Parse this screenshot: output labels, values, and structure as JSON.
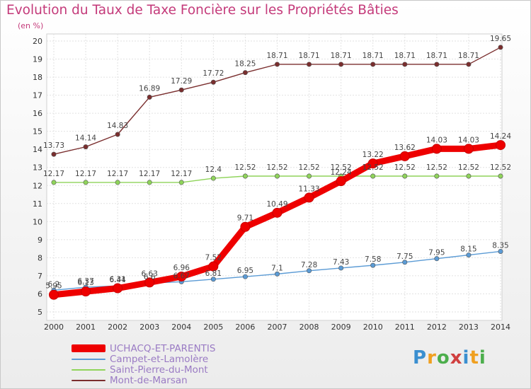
{
  "title": "Evolution du Taux de Taxe Foncière sur les Propriétés Bâties",
  "ylabel": "(en %)",
  "logo": {
    "letters": [
      "P",
      "r",
      "o",
      "x",
      "i",
      "t",
      "i"
    ],
    "colors": [
      "#3a8fd0",
      "#f0a020",
      "#4cae4c",
      "#d04040",
      "#3a8fd0",
      "#f0a020",
      "#4cae4c"
    ]
  },
  "chart_data": {
    "type": "line",
    "title": "Evolution du Taux de Taxe Foncière sur les Propriétés Bâties",
    "ylabel": "(en %)",
    "xlabel": "",
    "ylim": [
      5,
      20
    ],
    "yticks": [
      "5",
      "6",
      "7",
      "8",
      "9",
      "10",
      "11",
      "12",
      "13",
      "14",
      "15",
      "16",
      "17",
      "18",
      "19",
      "20"
    ],
    "categories": [
      "2000",
      "2001",
      "2002",
      "2003",
      "2004",
      "2005",
      "2006",
      "2007",
      "2008",
      "2009",
      "2010",
      "2011",
      "2012",
      "2013",
      "2014"
    ],
    "series": [
      {
        "name": "UCHACQ-ET-PARENTIS",
        "color": "#ee0000",
        "values": [
          5.95,
          6.13,
          6.31,
          6.63,
          6.96,
          7.52,
          9.71,
          10.49,
          11.33,
          12.24,
          13.22,
          13.62,
          14.03,
          14.03,
          14.24
        ],
        "labels": [
          "5.95",
          "6.13",
          "6.31",
          "6.63",
          "6.96",
          "7.52",
          "9.71",
          "10.49",
          "11.33",
          "12.24",
          "13.22",
          "13.62",
          "14.03",
          "14.03",
          "14.24"
        ]
      },
      {
        "name": "Campet-et-Lamolère",
        "color": "#5b9bd5",
        "values": [
          6.2,
          6.37,
          6.44,
          6.6,
          6.67,
          6.81,
          6.95,
          7.1,
          7.28,
          7.43,
          7.58,
          7.75,
          7.95,
          8.15,
          8.35
        ],
        "labels": [
          "6.2",
          "6.37",
          "6.44",
          "6.6",
          "6.67",
          "6.81",
          "6.95",
          "7.1",
          "7.28",
          "7.43",
          "7.58",
          "7.75",
          "7.95",
          "8.15",
          "8.35"
        ]
      },
      {
        "name": "Saint-Pierre-du-Mont",
        "color": "#8fd45a",
        "values": [
          12.17,
          12.17,
          12.17,
          12.17,
          12.17,
          12.4,
          12.52,
          12.52,
          12.52,
          12.52,
          12.52,
          12.52,
          12.52,
          12.52,
          12.52
        ],
        "labels": [
          "12.17",
          "12.17",
          "12.17",
          "12.17",
          "12.17",
          "12.4",
          "12.52",
          "12.52",
          "12.52",
          "12.52",
          "12.52",
          "12.52",
          "12.52",
          "12.52",
          "12.52"
        ]
      },
      {
        "name": "Mont-de-Marsan",
        "color": "#7a2e2e",
        "values": [
          13.73,
          14.14,
          14.83,
          16.89,
          17.29,
          17.72,
          18.25,
          18.71,
          18.71,
          18.71,
          18.71,
          18.71,
          18.71,
          18.71,
          19.65
        ],
        "labels": [
          "13.73",
          "14.14",
          "14.83",
          "16.89",
          "17.29",
          "17.72",
          "18.25",
          "18.71",
          "18.71",
          "18.71",
          "18.71",
          "18.71",
          "18.71",
          "18.71",
          "19.65"
        ]
      }
    ],
    "legend_position": "bottom-left"
  }
}
